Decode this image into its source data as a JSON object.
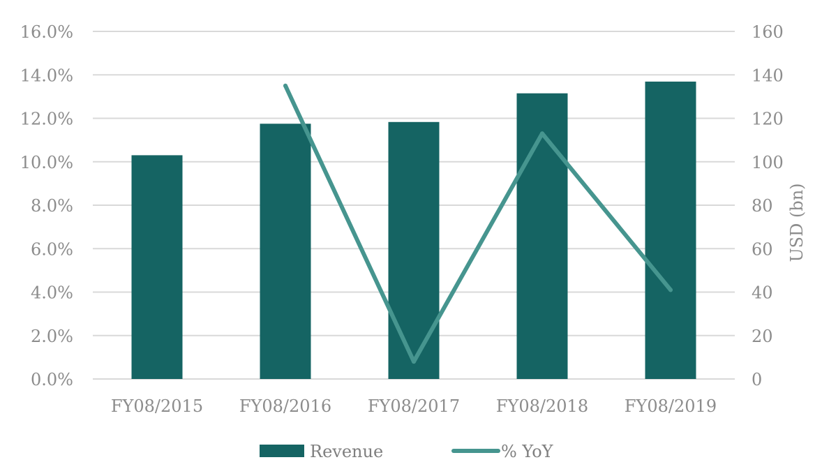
{
  "chart_data": {
    "type": "bar",
    "title": "",
    "categories": [
      "FY08/2015",
      "FY08/2016",
      "FY08/2017",
      "FY08/2018",
      "FY08/2019"
    ],
    "series": [
      {
        "name": "Revenue",
        "type": "bar",
        "axis": "right",
        "color": "#156463",
        "values": [
          103,
          117.5,
          118.3,
          131.5,
          136.9
        ]
      },
      {
        "name": "% YoY",
        "type": "line",
        "axis": "left",
        "color": "#46958f",
        "values": [
          null,
          13.5,
          0.8,
          11.3,
          4.1
        ]
      }
    ],
    "y_left": {
      "label": "",
      "min": 0,
      "max": 16,
      "step": 2,
      "tick_labels": [
        "0.0%",
        "2.0%",
        "4.0%",
        "6.0%",
        "8.0%",
        "10.0%",
        "12.0%",
        "14.0%",
        "16.0%"
      ]
    },
    "y_right": {
      "label": "USD (bn)",
      "min": 0,
      "max": 160,
      "step": 20,
      "tick_labels": [
        "0",
        "20",
        "40",
        "60",
        "80",
        "100",
        "120",
        "140",
        "160"
      ]
    },
    "grid": true,
    "legend_position": "bottom"
  }
}
